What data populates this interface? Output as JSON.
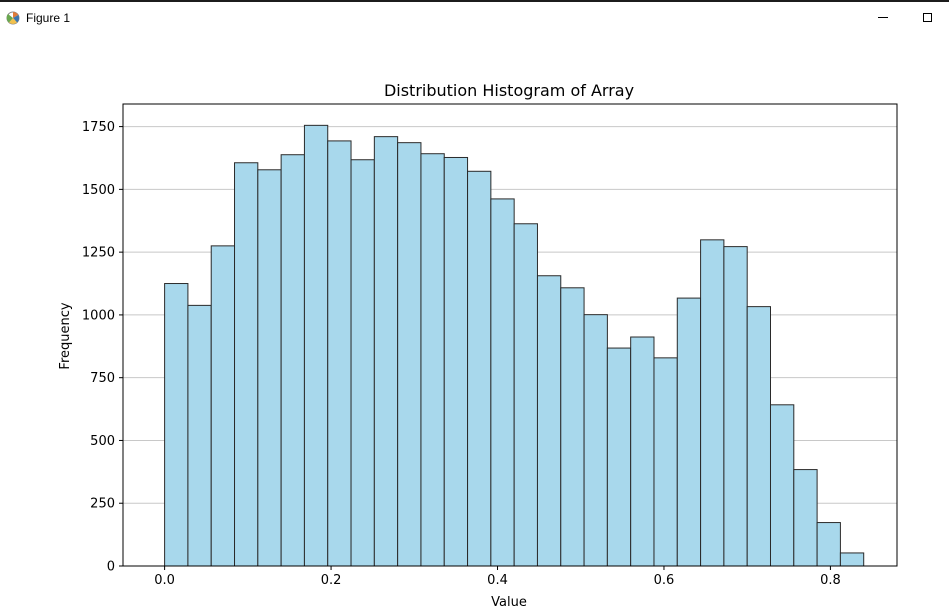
{
  "window": {
    "title": "Figure 1",
    "icon": "matplotlib-figure-icon"
  },
  "chart_data": {
    "type": "bar",
    "title": "Distribution Histogram of Array",
    "xlabel": "Value",
    "ylabel": "Frequency",
    "xlim": [
      -0.05,
      0.88
    ],
    "ylim": [
      0,
      1840
    ],
    "xticks": [
      0.0,
      0.2,
      0.4,
      0.6,
      0.8
    ],
    "xtick_labels": [
      "0.0",
      "0.2",
      "0.4",
      "0.6",
      "0.8"
    ],
    "yticks": [
      0,
      250,
      500,
      750,
      1000,
      1250,
      1500,
      1750
    ],
    "ytick_labels": [
      "0",
      "250",
      "500",
      "750",
      "1000",
      "1250",
      "1500",
      "1750"
    ],
    "grid": "y",
    "bar_color": "#a8d8ec",
    "edge_color": "#2a2a2a",
    "bin_start": 0.0,
    "bin_width": 0.028,
    "values": [
      1125,
      1038,
      1275,
      1606,
      1578,
      1638,
      1755,
      1693,
      1618,
      1710,
      1686,
      1642,
      1627,
      1572,
      1462,
      1363,
      1156,
      1108,
      1001,
      868,
      912,
      829,
      1067,
      1299,
      1272,
      1033,
      642,
      384,
      173,
      52
    ]
  }
}
